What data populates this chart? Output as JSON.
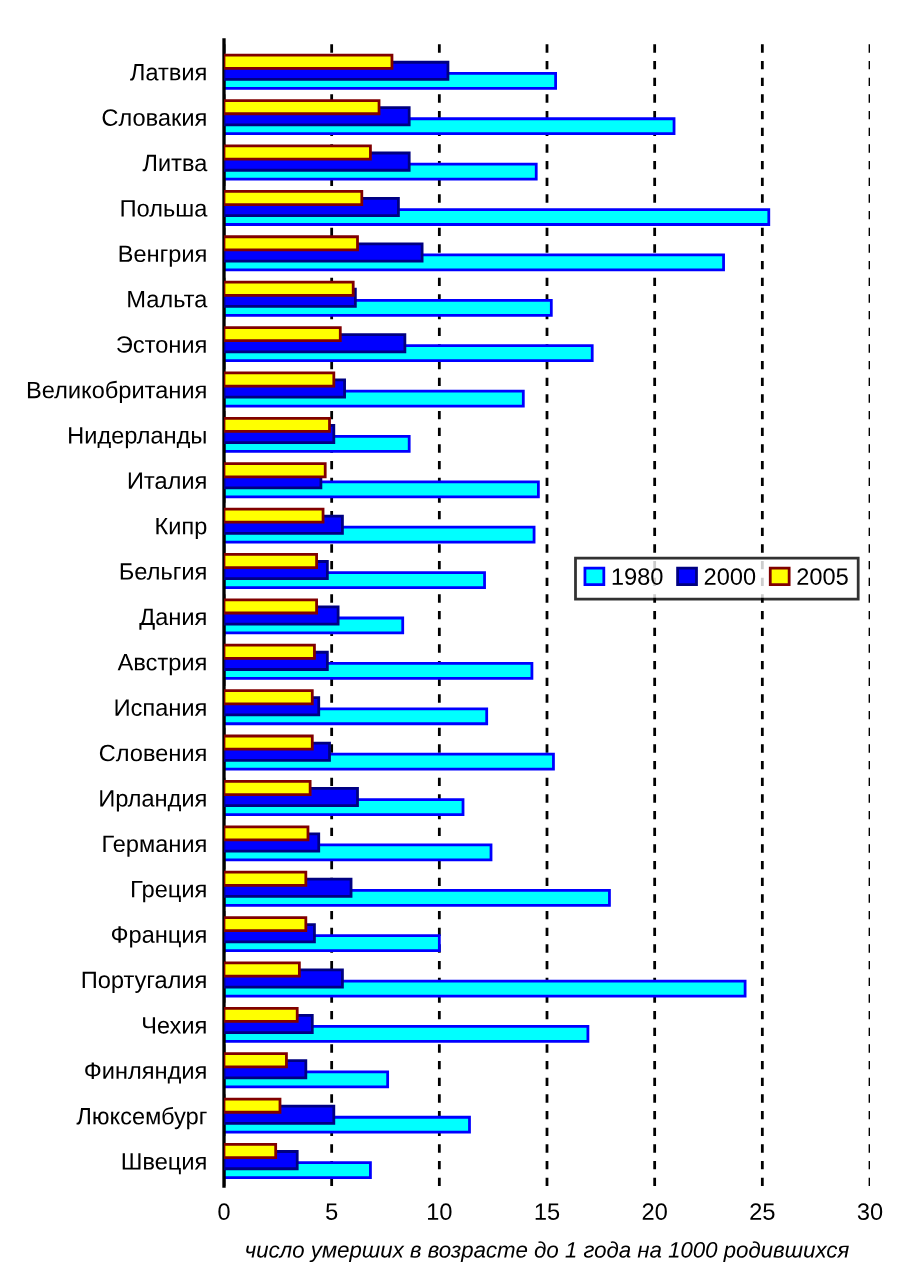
{
  "chart_data": {
    "type": "bar",
    "orientation": "horizontal",
    "categories": [
      "Латвия",
      "Словакия",
      "Литва",
      "Польша",
      "Венгрия",
      "Мальта",
      "Эстония",
      "Великобритания",
      "Нидерланды",
      "Италия",
      "Кипр",
      "Бельгия",
      "Дания",
      "Австрия",
      "Испания",
      "Словения",
      "Ирландия",
      "Германия",
      "Греция",
      "Франция",
      "Португалия",
      "Чехия",
      "Финляндия",
      "Люксембург",
      "Швеция"
    ],
    "series": [
      {
        "name": "1980",
        "color": "#00ffff",
        "values": [
          15.4,
          20.9,
          14.5,
          25.3,
          23.2,
          15.2,
          17.1,
          13.9,
          8.6,
          14.6,
          14.4,
          12.1,
          8.3,
          14.3,
          12.2,
          15.3,
          11.1,
          12.4,
          17.9,
          10.0,
          24.2,
          16.9,
          7.6,
          11.4,
          6.8
        ]
      },
      {
        "name": "2000",
        "color": "#0000ff",
        "values": [
          10.4,
          8.6,
          8.6,
          8.1,
          9.2,
          6.1,
          8.4,
          5.6,
          5.1,
          4.5,
          5.5,
          4.8,
          5.3,
          4.8,
          4.4,
          4.9,
          6.2,
          4.4,
          5.9,
          4.2,
          5.5,
          4.1,
          3.8,
          5.1,
          3.4
        ]
      },
      {
        "name": "2005",
        "color": "#ffff00",
        "values": [
          7.8,
          7.2,
          6.8,
          6.4,
          6.2,
          6.0,
          5.4,
          5.1,
          4.9,
          4.7,
          4.6,
          4.3,
          4.3,
          4.2,
          4.1,
          4.1,
          4.0,
          3.9,
          3.8,
          3.8,
          3.5,
          3.4,
          2.9,
          2.6,
          2.4
        ]
      }
    ],
    "xlabel": "число умерших в возрасте до 1 года на 1000 родившихся",
    "xlim": [
      0,
      30
    ],
    "xticks": [
      0,
      5,
      10,
      15,
      20,
      25,
      30
    ],
    "grid": "x",
    "legend": "right"
  }
}
